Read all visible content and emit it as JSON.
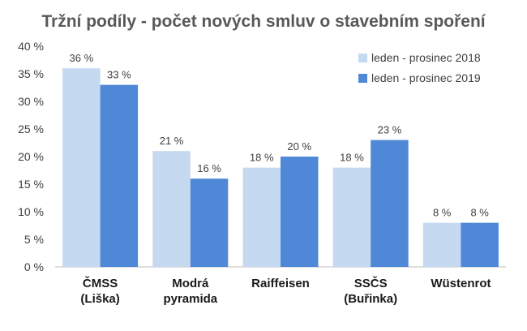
{
  "chart_data": {
    "type": "bar",
    "title": "Tržní podíly - počet nových smluv o stavebním spoření",
    "categories": [
      [
        "ČMSS",
        "(Liška)"
      ],
      [
        "Modrá",
        "pyramida"
      ],
      [
        "Raiffeisen"
      ],
      [
        "SSČS",
        "(Buřinka)"
      ],
      [
        "Wüstenrot"
      ]
    ],
    "series": [
      {
        "name": "leden - prosinec 2018",
        "color": "#c5d9f1",
        "values": [
          36,
          21,
          18,
          18,
          8
        ],
        "labels": [
          "36 %",
          "21 %",
          "18 %",
          "18 %",
          "8 %"
        ]
      },
      {
        "name": "leden - prosinec 2019",
        "color": "#4f88d6",
        "values": [
          33,
          16,
          20,
          23,
          8
        ],
        "labels": [
          "33 %",
          "16 %",
          "20 %",
          "23 %",
          "8 %"
        ]
      }
    ],
    "ylim": [
      0,
      40
    ],
    "yticks": [
      "0 %",
      "5 %",
      "10 %",
      "15 %",
      "20 %",
      "25 %",
      "30 %",
      "35 %",
      "40 %"
    ],
    "grid": false,
    "legend_position": "top-right"
  }
}
